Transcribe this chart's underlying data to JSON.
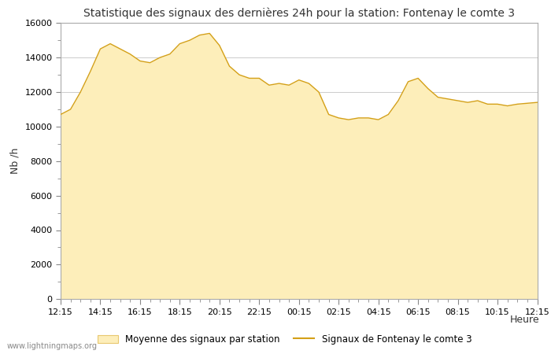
{
  "title": "Statistique des signaux des dernières 24h pour la station: Fontenay le comte 3",
  "xlabel": "Heure",
  "ylabel": "Nb /h",
  "x_labels": [
    "12:15",
    "14:15",
    "16:15",
    "18:15",
    "20:15",
    "22:15",
    "00:15",
    "02:15",
    "04:15",
    "06:15",
    "08:15",
    "10:15",
    "12:15"
  ],
  "ylim": [
    0,
    16000
  ],
  "yticks_major": [
    0,
    2000,
    4000,
    6000,
    8000,
    10000,
    12000,
    14000,
    16000
  ],
  "yticks_minor": [
    1000,
    3000,
    5000,
    7000,
    9000,
    11000,
    13000,
    15000
  ],
  "fill_color": "#FDEEBA",
  "fill_edge_color": "#E8C870",
  "line_color": "#D4A017",
  "bg_color": "#FFFFFF",
  "grid_color": "#CCCCCC",
  "watermark": "www.lightningmaps.org",
  "legend_fill_label": "Moyenne des signaux par station",
  "legend_line_label": "Signaux de Fontenay le comte 3",
  "x_pts": [
    0.0,
    0.5,
    1.0,
    1.5,
    2.0,
    2.5,
    3.0,
    3.5,
    4.0,
    4.5,
    5.0,
    5.5,
    6.0,
    6.5,
    7.0,
    7.5,
    8.0,
    8.5,
    9.0,
    9.5,
    10.0,
    10.5,
    11.0,
    11.5,
    12.0,
    12.5,
    13.0,
    13.5,
    14.0,
    14.5,
    15.0,
    15.5,
    16.0,
    16.5,
    17.0,
    17.5,
    18.0,
    18.5,
    19.0,
    19.5,
    20.0,
    20.5,
    21.0,
    21.5,
    22.0,
    22.5,
    23.0,
    23.5,
    24.0
  ],
  "y_pts": [
    10700,
    11000,
    12000,
    13200,
    14500,
    14800,
    14500,
    14200,
    13800,
    13700,
    14000,
    14200,
    14800,
    15000,
    15300,
    15400,
    14700,
    13500,
    13000,
    12800,
    12800,
    12400,
    12500,
    12400,
    12700,
    12500,
    12000,
    10700,
    10500,
    10400,
    10500,
    10500,
    10400,
    10700,
    11500,
    12600,
    12800,
    12200,
    11700,
    11600,
    11500,
    11400,
    11500,
    11300,
    11300,
    11200,
    11300,
    11350,
    11400
  ]
}
